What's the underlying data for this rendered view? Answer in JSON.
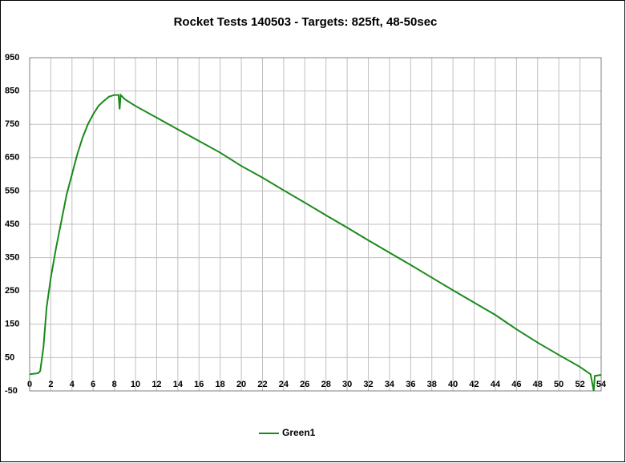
{
  "chart_data": {
    "type": "line",
    "title": "Rocket Tests 140503 - Targets: 825ft, 48-50sec",
    "x": [
      0,
      0.5,
      0.8,
      1,
      1.3,
      1.6,
      2,
      2.5,
      3,
      3.5,
      4,
      4.5,
      5,
      5.5,
      6,
      6.5,
      7,
      7.5,
      8,
      8.4,
      8.5,
      8.6,
      9,
      10,
      12,
      14,
      16,
      18,
      20,
      22,
      24,
      26,
      28,
      30,
      32,
      34,
      36,
      38,
      40,
      42,
      44,
      46,
      48,
      50,
      52,
      53,
      53.3,
      53.4,
      54
    ],
    "series": [
      {
        "name": "Green1",
        "color": "#1a8a1a",
        "values": [
          0,
          2,
          3,
          10,
          80,
          200,
          290,
          380,
          460,
          540,
          600,
          660,
          710,
          750,
          780,
          805,
          820,
          833,
          838,
          838,
          795,
          838,
          825,
          805,
          770,
          735,
          700,
          665,
          625,
          590,
          552,
          515,
          477,
          440,
          402,
          365,
          328,
          290,
          252,
          215,
          178,
          135,
          95,
          58,
          22,
          0,
          -50,
          -5,
          -2
        ]
      }
    ],
    "xlim": [
      0,
      54
    ],
    "xticks": [
      0,
      2,
      4,
      6,
      8,
      10,
      12,
      14,
      16,
      18,
      20,
      22,
      24,
      26,
      28,
      30,
      32,
      34,
      36,
      38,
      40,
      42,
      44,
      46,
      48,
      50,
      52,
      54
    ],
    "ylim": [
      -50,
      950
    ],
    "yticks": [
      -50,
      50,
      150,
      250,
      350,
      450,
      550,
      650,
      750,
      850,
      950
    ],
    "grid": true,
    "legend": "bottom"
  }
}
